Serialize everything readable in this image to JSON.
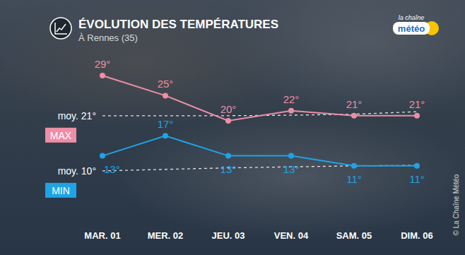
{
  "chart_data": {
    "type": "line",
    "title": "ÉVOLUTION DES TEMPÉRATURES",
    "subtitle": "À Rennes (35)",
    "categories": [
      "MAR. 01",
      "MER. 02",
      "JEU. 03",
      "VEN. 04",
      "SAM. 05",
      "DIM. 06"
    ],
    "ylim": [
      2,
      33
    ],
    "tick_labels": "x",
    "grid": false,
    "series": [
      {
        "name": "MAX",
        "color": "#ee8ea6",
        "values": [
          29,
          25,
          20,
          22,
          21,
          21
        ],
        "value_labels": [
          "29°",
          "25°",
          "20°",
          "22°",
          "21°",
          "21°"
        ],
        "data_labels": true,
        "marker": "circle",
        "line_style": "solid"
      },
      {
        "name": "MIN",
        "color": "#1fa3e6",
        "values": [
          13,
          17,
          13,
          13,
          11,
          11
        ],
        "value_labels": [
          "13°",
          "17°",
          "13°",
          "13°",
          "11°",
          "11°"
        ],
        "data_labels": true,
        "marker": "circle",
        "line_style": "solid"
      },
      {
        "name": "moy. 21°",
        "color": "#ffffff",
        "values": [
          21,
          21,
          21,
          21.1,
          21.3,
          21.8
        ],
        "data_labels": false,
        "marker": "none",
        "line_style": "dashed"
      },
      {
        "name": "moy. 10°",
        "color": "#ffffff",
        "values": [
          10,
          10.3,
          10.6,
          10.8,
          11,
          11.1
        ],
        "data_labels": false,
        "marker": "none",
        "line_style": "dashed"
      }
    ]
  },
  "logo": [
    "la chaîne",
    "météo"
  ],
  "credit": "© La Chaîne Météo"
}
